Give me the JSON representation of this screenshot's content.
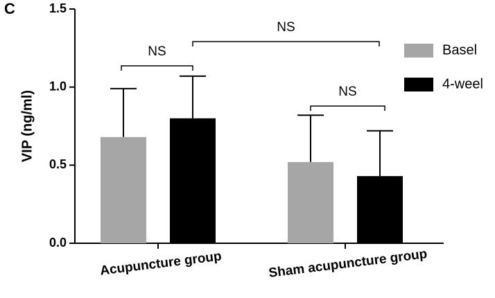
{
  "chart_data": {
    "type": "bar",
    "panel_label": "C",
    "ylabel": "VIP (ng/ml)",
    "categories": [
      "Acupuncture group",
      "Sham acupuncture group"
    ],
    "series": [
      {
        "name": "Basel",
        "color": "#a6a6a6",
        "values": [
          0.68,
          0.52
        ],
        "errors": [
          0.31,
          0.3
        ]
      },
      {
        "name": "4-weel",
        "color": "#000000",
        "values": [
          0.8,
          0.43
        ],
        "errors": [
          0.27,
          0.29
        ]
      }
    ],
    "ylim": [
      0,
      1.5
    ],
    "yticks": [
      {
        "value": 0,
        "label": "0.0"
      },
      0.5,
      {
        "value": 1,
        "label": "1.0"
      },
      1.5
    ],
    "annotations": [
      {
        "text": "NS"
      },
      {
        "text": "NS"
      },
      {
        "text": "NS"
      }
    ],
    "legend": "upper right"
  }
}
